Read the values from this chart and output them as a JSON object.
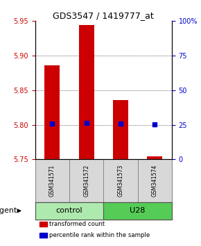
{
  "title": "GDS3547 / 1419777_at",
  "samples": [
    "GSM341571",
    "GSM341572",
    "GSM341573",
    "GSM341574"
  ],
  "bar_values": [
    5.886,
    5.944,
    5.836,
    5.754
  ],
  "bar_bottom": 5.75,
  "bar_color": "#cc0000",
  "dot_values": [
    5.802,
    5.803,
    5.802,
    5.801
  ],
  "dot_color": "#0000cc",
  "ylim_left": [
    5.75,
    5.95
  ],
  "yticks_left": [
    5.75,
    5.8,
    5.85,
    5.9,
    5.95
  ],
  "ylim_right": [
    0,
    100
  ],
  "yticks_right": [
    0,
    25,
    50,
    75,
    100
  ],
  "ytick_labels_right": [
    "0",
    "25",
    "50",
    "75",
    "100%"
  ],
  "groups": [
    {
      "label": "control",
      "samples": [
        0,
        1
      ],
      "color": "#aeeaae"
    },
    {
      "label": "U28",
      "samples": [
        2,
        3
      ],
      "color": "#55cc55"
    }
  ],
  "agent_label": "agent",
  "legend_items": [
    {
      "color": "#cc0000",
      "label": "transformed count"
    },
    {
      "color": "#0000cc",
      "label": "percentile rank within the sample"
    }
  ],
  "grid_yticks": [
    5.8,
    5.85,
    5.9
  ],
  "bar_width": 0.45
}
